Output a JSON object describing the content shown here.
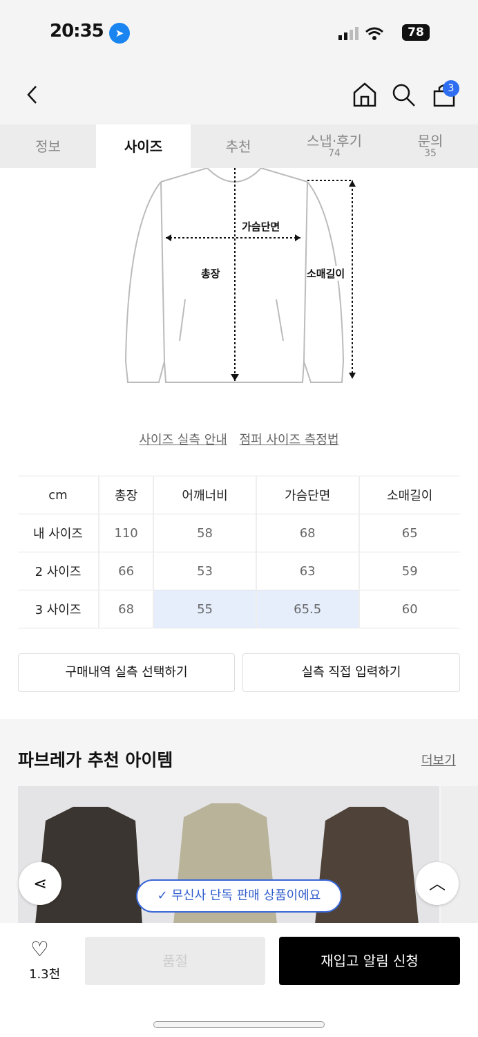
{
  "status": {
    "time": "20:35",
    "battery": "78"
  },
  "nav": {
    "cart_count": "3"
  },
  "tabs": [
    {
      "label": "정보"
    },
    {
      "label": "사이즈"
    },
    {
      "label": "추천"
    },
    {
      "label": "스냅·후기",
      "count": "74"
    },
    {
      "label": "문의",
      "count": "35"
    }
  ],
  "diagram": {
    "chest": "가슴단면",
    "length": "총장",
    "sleeve": "소매길이"
  },
  "links": {
    "guide": "사이즈 실측 안내",
    "method": "점퍼 사이즈 측정법"
  },
  "table": {
    "headers": [
      "cm",
      "총장",
      "어깨너비",
      "가슴단면",
      "소매길이"
    ],
    "rows": [
      [
        "내 사이즈",
        "110",
        "58",
        "68",
        "65"
      ],
      [
        "2 사이즈",
        "66",
        "53",
        "63",
        "59"
      ],
      [
        "3 사이즈",
        "68",
        "55",
        "65.5",
        "60"
      ]
    ]
  },
  "buttons": {
    "history": "구매내역 실측 선택하기",
    "manual": "실측 직접 입력하기"
  },
  "recommend": {
    "title": "파브레가 추천 아이템",
    "more": "더보기"
  },
  "toast": "무신사 단독 판매 상품이에요",
  "bottom": {
    "likes": "1.3천",
    "soldout": "품절",
    "restock": "재입고 알림 신청"
  }
}
